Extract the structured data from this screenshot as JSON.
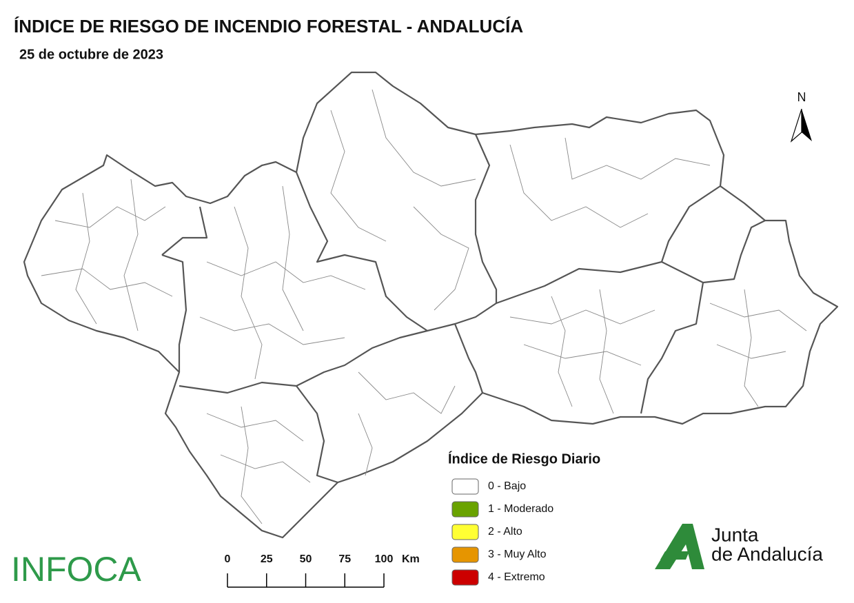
{
  "header": {
    "title": "ÍNDICE DE RIESGO DE INCENDIO FORESTAL - ANDALUCÍA",
    "date": "25 de octubre de 2023"
  },
  "north_arrow": {
    "label": "N"
  },
  "legend": {
    "title": "Índice de Riesgo Diario",
    "items": [
      {
        "label": "0 - Bajo",
        "color": "#ffffff"
      },
      {
        "label": "1 - Moderado",
        "color": "#6aa300"
      },
      {
        "label": "2 - Alto",
        "color": "#ffff33"
      },
      {
        "label": "3 - Muy Alto",
        "color": "#e69500"
      },
      {
        "label": "4 - Extremo",
        "color": "#cc0000"
      }
    ]
  },
  "scale_bar": {
    "ticks": [
      0,
      25,
      50,
      75,
      100
    ],
    "unit": "Km"
  },
  "logos": {
    "infoca": "INFOCA",
    "junta_line1": "Junta",
    "junta_line2": "de Andalucía"
  }
}
